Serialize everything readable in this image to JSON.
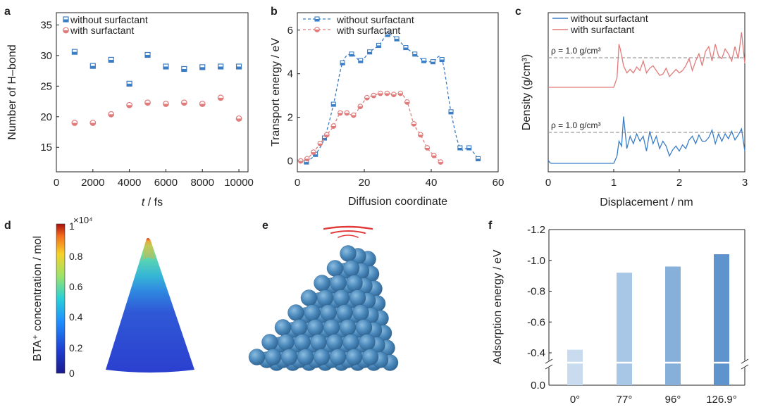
{
  "colors": {
    "without": "#3b7dc4",
    "with": "#e07b7b",
    "ref_line": "#9e9e9e",
    "bar_0": "#c9dcef",
    "bar_77": "#a8c6e6",
    "bar_96": "#86afda",
    "bar_126": "#5e93cc",
    "cone": "#2e4fd1",
    "sphere": "#4a88bb"
  },
  "panel_labels": [
    "a",
    "b",
    "c",
    "d",
    "e",
    "f"
  ],
  "chart_data": [
    {
      "panel": "a",
      "type": "scatter",
      "xlabel_italic": "t",
      "xlabel_rest": " / fs",
      "ylabel": "Number of H–bond",
      "xlim": [
        0,
        10500
      ],
      "ylim": [
        11,
        37
      ],
      "xticks": [
        0,
        2000,
        4000,
        6000,
        8000,
        10000
      ],
      "yticks": [
        15,
        20,
        25,
        30,
        35
      ],
      "legend": "top-left",
      "series": [
        {
          "name": "without surfactant",
          "marker": "square",
          "x": [
            1000,
            2000,
            3000,
            4000,
            5000,
            6000,
            7000,
            8000,
            9000,
            10000
          ],
          "y": [
            30.6,
            28.3,
            29.3,
            25.4,
            30.1,
            28.2,
            27.8,
            28.1,
            28.2,
            28.2
          ]
        },
        {
          "name": "with surfactant",
          "marker": "circle",
          "x": [
            1000,
            2000,
            3000,
            4000,
            5000,
            6000,
            7000,
            8000,
            9000,
            10000
          ],
          "y": [
            19.0,
            19.0,
            20.4,
            21.9,
            22.3,
            22.1,
            22.3,
            22.1,
            23.1,
            19.7
          ]
        }
      ]
    },
    {
      "panel": "b",
      "type": "line",
      "xlabel": "Diffusion coordinate",
      "ylabel": "Transport energy / eV",
      "xlim": [
        0,
        60
      ],
      "ylim": [
        -0.5,
        6.8
      ],
      "xticks": [
        0,
        20,
        40,
        60
      ],
      "yticks": [
        0,
        2,
        4,
        6
      ],
      "legend": "top-center",
      "series": [
        {
          "name": "without surfactant",
          "marker": "square",
          "x": [
            2.7,
            5.4,
            8.1,
            10.8,
            13.5,
            16.2,
            18.9,
            21.6,
            24.3,
            27.0,
            29.7,
            32.4,
            35.1,
            37.8,
            40.5,
            43.2,
            45.9,
            48.6,
            51.3,
            54.0
          ],
          "y": [
            -0.05,
            0.3,
            1.05,
            2.6,
            4.5,
            4.9,
            4.6,
            5.0,
            5.3,
            5.8,
            5.6,
            5.2,
            4.9,
            4.6,
            4.55,
            4.65,
            2.25,
            0.6,
            0.6,
            0.1
          ]
        },
        {
          "name": "with surfactant",
          "marker": "circle",
          "x": [
            1.0,
            2.9,
            4.8,
            6.8,
            8.8,
            10.8,
            12.8,
            14.8,
            16.8,
            18.8,
            20.8,
            22.8,
            24.8,
            26.8,
            28.8,
            30.8,
            32.8,
            34.8,
            36.8,
            38.8,
            40.8,
            42.8
          ],
          "y": [
            0.0,
            0.1,
            0.4,
            0.8,
            1.2,
            1.6,
            2.2,
            2.2,
            2.1,
            2.5,
            2.9,
            3.0,
            3.1,
            3.1,
            3.05,
            3.1,
            2.7,
            1.7,
            1.2,
            0.6,
            0.25,
            -0.05
          ]
        }
      ]
    },
    {
      "panel": "c",
      "type": "line",
      "xlabel": "Displacement / nm",
      "ylabel": "Density (g/cm³)",
      "xlim": [
        0,
        3
      ],
      "xticks": [
        0,
        1,
        2,
        3
      ],
      "legend": "top-left",
      "annotations": [
        "ρ = 1.0 g/cm³",
        "ρ = 1.0 g/cm³"
      ],
      "series": [
        {
          "name": "without surfactant",
          "x": [
            0,
            0.03,
            0.05,
            1.0,
            1.05,
            1.08,
            1.12,
            1.15,
            1.2,
            1.25,
            1.3,
            1.35,
            1.4,
            1.45,
            1.5,
            1.55,
            1.6,
            1.65,
            1.7,
            1.75,
            1.8,
            1.85,
            1.9,
            1.95,
            2.0,
            2.05,
            2.1,
            2.15,
            2.2,
            2.25,
            2.3,
            2.35,
            2.4,
            2.45,
            2.5,
            2.55,
            2.6,
            2.65,
            2.7,
            2.75,
            2.8,
            2.85,
            2.9,
            2.95,
            3.0
          ],
          "y": [
            0.12,
            0.02,
            0.0,
            0.0,
            0.3,
            0.9,
            0.7,
            1.9,
            0.6,
            1.1,
            0.8,
            1.2,
            0.9,
            1.1,
            0.5,
            1.3,
            0.8,
            1.1,
            0.6,
            0.9,
            0.7,
            0.3,
            0.55,
            0.7,
            0.5,
            0.75,
            0.6,
            0.95,
            1.1,
            0.8,
            1.15,
            0.9,
            0.9,
            1.05,
            1.35,
            0.8,
            1.2,
            0.9,
            1.2,
            1.0,
            1.3,
            0.95,
            1.15,
            1.4,
            0.5
          ]
        },
        {
          "name": "with surfactant",
          "x": [
            0,
            1.0,
            1.05,
            1.08,
            1.1,
            1.15,
            1.2,
            1.25,
            1.3,
            1.35,
            1.4,
            1.45,
            1.5,
            1.55,
            1.6,
            1.65,
            1.7,
            1.75,
            1.8,
            1.85,
            1.9,
            1.95,
            2.0,
            2.05,
            2.1,
            2.15,
            2.2,
            2.25,
            2.3,
            2.35,
            2.4,
            2.45,
            2.5,
            2.55,
            2.6,
            2.65,
            2.7,
            2.75,
            2.8,
            2.85,
            2.9,
            2.95,
            3.0
          ],
          "y": [
            0.0,
            0.0,
            0.4,
            1.8,
            1.6,
            0.9,
            0.6,
            0.75,
            0.6,
            0.85,
            0.7,
            1.1,
            0.6,
            0.8,
            0.9,
            0.7,
            0.5,
            0.55,
            0.8,
            0.45,
            0.6,
            0.75,
            0.6,
            0.7,
            0.9,
            1.2,
            0.7,
            1.1,
            1.4,
            0.9,
            1.5,
            1.7,
            1.1,
            1.8,
            1.3,
            1.2,
            1.6,
            1.4,
            1.1,
            1.7,
            1.2,
            2.3,
            1.0
          ]
        }
      ]
    },
    {
      "panel": "d",
      "type": "heatmap",
      "colorbar_label": "BTA⁺ concentration / mol",
      "colorbar_ticks": [
        "0",
        "0.2",
        "0.4",
        "0.6",
        "0.8",
        "1"
      ],
      "colorbar_multiplier": "×10⁴"
    },
    {
      "panel": "f",
      "type": "bar",
      "ylabel": "Adsorption energy / eV",
      "categories": [
        "0°",
        "77°",
        "96°",
        "126.9°"
      ],
      "values": [
        -0.42,
        -0.92,
        -0.96,
        -1.04
      ],
      "yticks": [
        "-1.2",
        "-1.0",
        "-0.8",
        "-0.6",
        "-0.4",
        "0.0"
      ],
      "axis_break": [
        -0.35,
        0.0
      ],
      "ylim": [
        -1.2,
        0.0
      ]
    }
  ]
}
